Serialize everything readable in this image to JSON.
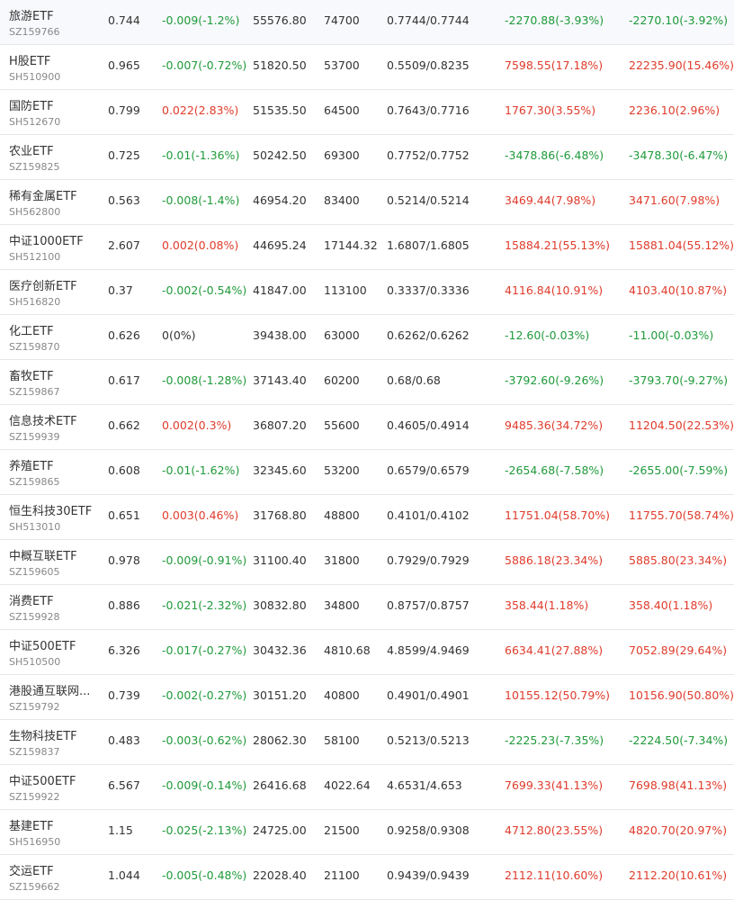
{
  "colors": {
    "up": "#e03b2b",
    "down": "#1f9a3a",
    "flat": "#333333",
    "code": "#888888",
    "divider": "#e8e8e8"
  },
  "rows": [
    {
      "name": "旅游ETF",
      "code": "SZ159766",
      "price": "0.744",
      "change": "-0.009(-1.2%)",
      "change_dir": "down",
      "amount": "55576.80",
      "volume": "74700",
      "range": "0.7744/0.7744",
      "pnl1": "-2270.88(-3.93%)",
      "pnl1_dir": "down",
      "pnl2": "-2270.10(-3.92%)",
      "pnl2_dir": "down"
    },
    {
      "name": "H股ETF",
      "code": "SH510900",
      "price": "0.965",
      "change": "-0.007(-0.72%)",
      "change_dir": "down",
      "amount": "51820.50",
      "volume": "53700",
      "range": "0.5509/0.8235",
      "pnl1": "7598.55(17.18%)",
      "pnl1_dir": "up",
      "pnl2": "22235.90(15.46%)",
      "pnl2_dir": "up"
    },
    {
      "name": "国防ETF",
      "code": "SH512670",
      "price": "0.799",
      "change": "0.022(2.83%)",
      "change_dir": "up",
      "amount": "51535.50",
      "volume": "64500",
      "range": "0.7643/0.7716",
      "pnl1": "1767.30(3.55%)",
      "pnl1_dir": "up",
      "pnl2": "2236.10(2.96%)",
      "pnl2_dir": "up"
    },
    {
      "name": "农业ETF",
      "code": "SZ159825",
      "price": "0.725",
      "change": "-0.01(-1.36%)",
      "change_dir": "down",
      "amount": "50242.50",
      "volume": "69300",
      "range": "0.7752/0.7752",
      "pnl1": "-3478.86(-6.48%)",
      "pnl1_dir": "down",
      "pnl2": "-3478.30(-6.47%)",
      "pnl2_dir": "down"
    },
    {
      "name": "稀有金属ETF",
      "code": "SH562800",
      "price": "0.563",
      "change": "-0.008(-1.4%)",
      "change_dir": "down",
      "amount": "46954.20",
      "volume": "83400",
      "range": "0.5214/0.5214",
      "pnl1": "3469.44(7.98%)",
      "pnl1_dir": "up",
      "pnl2": "3471.60(7.98%)",
      "pnl2_dir": "up"
    },
    {
      "name": "中证1000ETF",
      "code": "SH512100",
      "price": "2.607",
      "change": "0.002(0.08%)",
      "change_dir": "up",
      "amount": "44695.24",
      "volume": "17144.32",
      "range": "1.6807/1.6805",
      "pnl1": "15884.21(55.13%)",
      "pnl1_dir": "up",
      "pnl2": "15881.04(55.12%)",
      "pnl2_dir": "up"
    },
    {
      "name": "医疗创新ETF",
      "code": "SH516820",
      "price": "0.37",
      "change": "-0.002(-0.54%)",
      "change_dir": "down",
      "amount": "41847.00",
      "volume": "113100",
      "range": "0.3337/0.3336",
      "pnl1": "4116.84(10.91%)",
      "pnl1_dir": "up",
      "pnl2": "4103.40(10.87%)",
      "pnl2_dir": "up"
    },
    {
      "name": "化工ETF",
      "code": "SZ159870",
      "price": "0.626",
      "change": "0(0%)",
      "change_dir": "flat",
      "amount": "39438.00",
      "volume": "63000",
      "range": "0.6262/0.6262",
      "pnl1": "-12.60(-0.03%)",
      "pnl1_dir": "down",
      "pnl2": "-11.00(-0.03%)",
      "pnl2_dir": "down"
    },
    {
      "name": "畜牧ETF",
      "code": "SZ159867",
      "price": "0.617",
      "change": "-0.008(-1.28%)",
      "change_dir": "down",
      "amount": "37143.40",
      "volume": "60200",
      "range": "0.68/0.68",
      "pnl1": "-3792.60(-9.26%)",
      "pnl1_dir": "down",
      "pnl2": "-3793.70(-9.27%)",
      "pnl2_dir": "down"
    },
    {
      "name": "信息技术ETF",
      "code": "SZ159939",
      "price": "0.662",
      "change": "0.002(0.3%)",
      "change_dir": "up",
      "amount": "36807.20",
      "volume": "55600",
      "range": "0.4605/0.4914",
      "pnl1": "9485.36(34.72%)",
      "pnl1_dir": "up",
      "pnl2": "11204.50(22.53%)",
      "pnl2_dir": "up"
    },
    {
      "name": "养殖ETF",
      "code": "SZ159865",
      "price": "0.608",
      "change": "-0.01(-1.62%)",
      "change_dir": "down",
      "amount": "32345.60",
      "volume": "53200",
      "range": "0.6579/0.6579",
      "pnl1": "-2654.68(-7.58%)",
      "pnl1_dir": "down",
      "pnl2": "-2655.00(-7.59%)",
      "pnl2_dir": "down"
    },
    {
      "name": "恒生科技30ETF",
      "code": "SH513010",
      "price": "0.651",
      "change": "0.003(0.46%)",
      "change_dir": "up",
      "amount": "31768.80",
      "volume": "48800",
      "range": "0.4101/0.4102",
      "pnl1": "11751.04(58.70%)",
      "pnl1_dir": "up",
      "pnl2": "11755.70(58.74%)",
      "pnl2_dir": "up"
    },
    {
      "name": "中概互联ETF",
      "code": "SZ159605",
      "price": "0.978",
      "change": "-0.009(-0.91%)",
      "change_dir": "down",
      "amount": "31100.40",
      "volume": "31800",
      "range": "0.7929/0.7929",
      "pnl1": "5886.18(23.34%)",
      "pnl1_dir": "up",
      "pnl2": "5885.80(23.34%)",
      "pnl2_dir": "up"
    },
    {
      "name": "消费ETF",
      "code": "SZ159928",
      "price": "0.886",
      "change": "-0.021(-2.32%)",
      "change_dir": "down",
      "amount": "30832.80",
      "volume": "34800",
      "range": "0.8757/0.8757",
      "pnl1": "358.44(1.18%)",
      "pnl1_dir": "up",
      "pnl2": "358.40(1.18%)",
      "pnl2_dir": "up"
    },
    {
      "name": "中证500ETF",
      "code": "SH510500",
      "price": "6.326",
      "change": "-0.017(-0.27%)",
      "change_dir": "down",
      "amount": "30432.36",
      "volume": "4810.68",
      "range": "4.8599/4.9469",
      "pnl1": "6634.41(27.88%)",
      "pnl1_dir": "up",
      "pnl2": "7052.89(29.64%)",
      "pnl2_dir": "up"
    },
    {
      "name": "港股通互联网...",
      "code": "SZ159792",
      "price": "0.739",
      "change": "-0.002(-0.27%)",
      "change_dir": "down",
      "amount": "30151.20",
      "volume": "40800",
      "range": "0.4901/0.4901",
      "pnl1": "10155.12(50.79%)",
      "pnl1_dir": "up",
      "pnl2": "10156.90(50.80%)",
      "pnl2_dir": "up"
    },
    {
      "name": "生物科技ETF",
      "code": "SZ159837",
      "price": "0.483",
      "change": "-0.003(-0.62%)",
      "change_dir": "down",
      "amount": "28062.30",
      "volume": "58100",
      "range": "0.5213/0.5213",
      "pnl1": "-2225.23(-7.35%)",
      "pnl1_dir": "down",
      "pnl2": "-2224.50(-7.34%)",
      "pnl2_dir": "down"
    },
    {
      "name": "中证500ETF",
      "code": "SZ159922",
      "price": "6.567",
      "change": "-0.009(-0.14%)",
      "change_dir": "down",
      "amount": "26416.68",
      "volume": "4022.64",
      "range": "4.6531/4.653",
      "pnl1": "7699.33(41.13%)",
      "pnl1_dir": "up",
      "pnl2": "7698.98(41.13%)",
      "pnl2_dir": "up"
    },
    {
      "name": "基建ETF",
      "code": "SH516950",
      "price": "1.15",
      "change": "-0.025(-2.13%)",
      "change_dir": "down",
      "amount": "24725.00",
      "volume": "21500",
      "range": "0.9258/0.9308",
      "pnl1": "4712.80(23.55%)",
      "pnl1_dir": "up",
      "pnl2": "4820.70(20.97%)",
      "pnl2_dir": "up"
    },
    {
      "name": "交运ETF",
      "code": "SZ159662",
      "price": "1.044",
      "change": "-0.005(-0.48%)",
      "change_dir": "down",
      "amount": "22028.40",
      "volume": "21100",
      "range": "0.9439/0.9439",
      "pnl1": "2112.11(10.60%)",
      "pnl1_dir": "up",
      "pnl2": "2112.20(10.61%)",
      "pnl2_dir": "up"
    }
  ]
}
